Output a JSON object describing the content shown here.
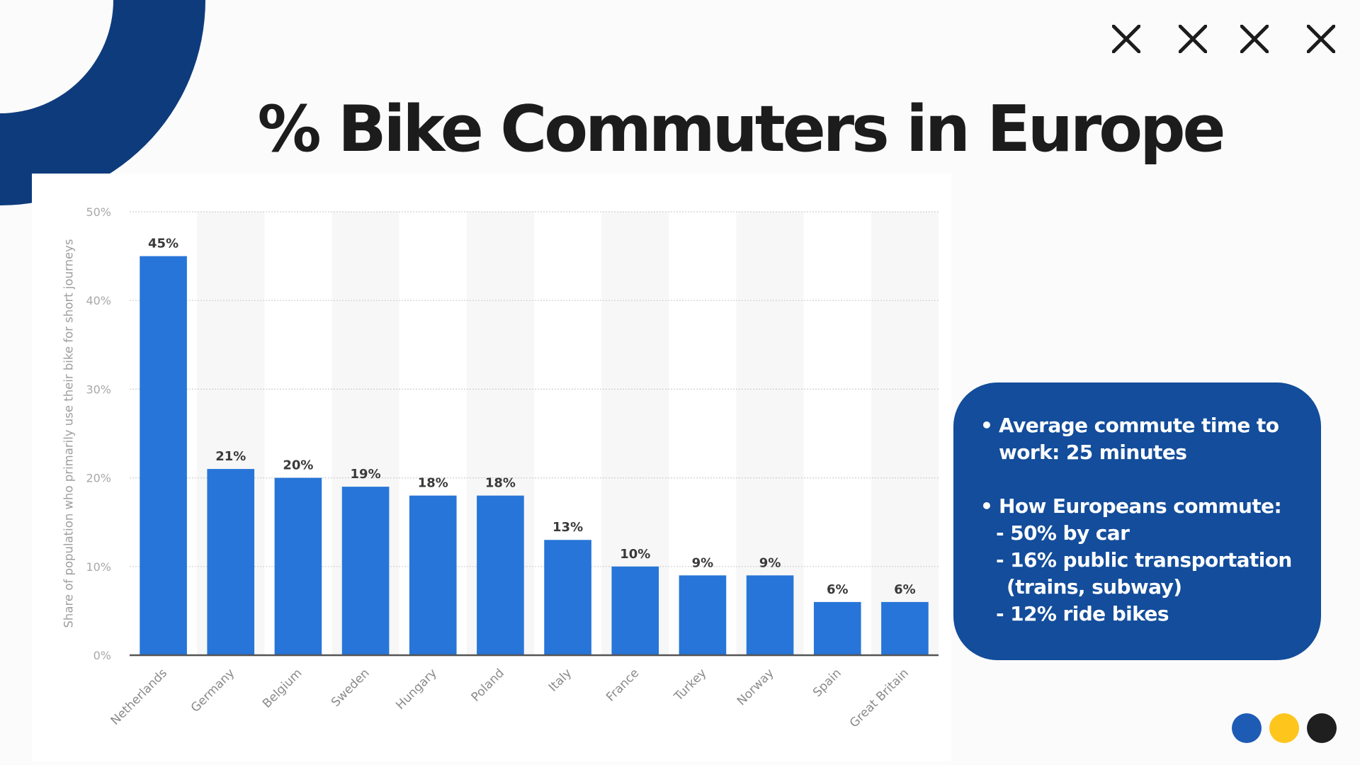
{
  "slide": {
    "title": "% Bike Commuters in Europe",
    "decor": {
      "arc_color": "#0E3B7C",
      "close_marks": [
        "close-icon",
        "close-icon",
        "close-icon",
        "close-icon"
      ],
      "dots": [
        {
          "name": "blue-dot",
          "color": "#1E5BB5"
        },
        {
          "name": "yellow-dot",
          "color": "#FEC51D"
        },
        {
          "name": "black-dot",
          "color": "#1F1F1F"
        }
      ]
    }
  },
  "info_panel": {
    "background": "#134D9B",
    "bullets": [
      {
        "lines": [
          "Average commute time to",
          "work:  25 minutes"
        ],
        "sub": []
      },
      {
        "lines": [
          "How Europeans commute:"
        ],
        "sub": [
          {
            "text": "- 50% by car",
            "cont": false
          },
          {
            "text": "- 16% public transportation",
            "cont": false
          },
          {
            "text": "(trains, subway)",
            "cont": true
          },
          {
            "text": "- 12% ride bikes",
            "cont": false
          }
        ]
      }
    ]
  },
  "chart_data": {
    "type": "bar",
    "title": "% Bike Commuters in Europe",
    "xlabel": "",
    "ylabel": "Share of population who primarily use their bike for short journeys",
    "categories": [
      "Netherlands",
      "Germany",
      "Belgium",
      "Sweden",
      "Hungary",
      "Poland",
      "Italy",
      "France",
      "Turkey",
      "Norway",
      "Spain",
      "Great Britain"
    ],
    "values": [
      45,
      21,
      20,
      19,
      18,
      18,
      13,
      10,
      9,
      9,
      6,
      6
    ],
    "data_labels": [
      "45%",
      "21%",
      "20%",
      "19%",
      "18%",
      "18%",
      "13%",
      "10%",
      "9%",
      "9%",
      "6%",
      "6%"
    ],
    "ylim": [
      0,
      50
    ],
    "yticks": [
      0,
      10,
      20,
      30,
      40,
      50
    ],
    "ytick_labels": [
      "0%",
      "10%",
      "20%",
      "30%",
      "40%",
      "50%"
    ],
    "grid": true,
    "legend": "none",
    "bar_color": "#2775D8"
  }
}
